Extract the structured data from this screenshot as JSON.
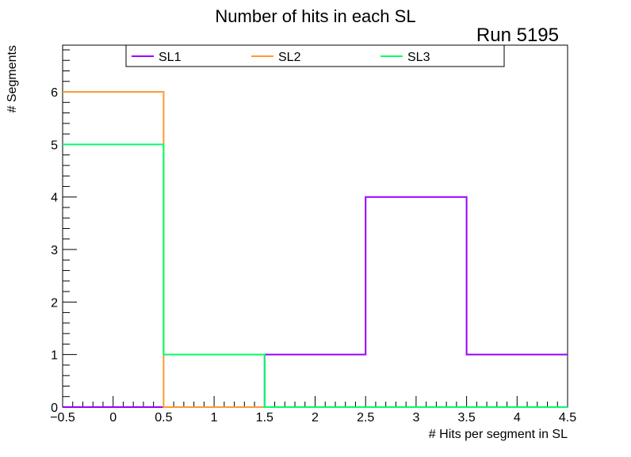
{
  "chart_data": {
    "type": "histogram",
    "title": "Number of hits in each SL",
    "annotation": "Run 5195",
    "xlabel": "# Hits per segment in SL",
    "ylabel": "# Segments",
    "xlim": [
      -0.5,
      4.5
    ],
    "ylim": [
      0,
      6.89
    ],
    "bin_edges": [
      -0.5,
      0.5,
      1.5,
      2.5,
      3.5,
      4.5
    ],
    "x_ticks": [
      "-0.5",
      "0",
      "0.5",
      "1",
      "1.5",
      "2",
      "2.5",
      "3",
      "3.5",
      "4",
      "4.5"
    ],
    "x_tick_values": [
      -0.5,
      0,
      0.5,
      1,
      1.5,
      2,
      2.5,
      3,
      3.5,
      4,
      4.5
    ],
    "y_ticks": [
      "0",
      "1",
      "2",
      "3",
      "4",
      "5",
      "6"
    ],
    "y_tick_values": [
      0,
      1,
      2,
      3,
      4,
      5,
      6
    ],
    "grid": false,
    "legend_position": "top",
    "series": [
      {
        "name": "SL1",
        "color": "#9900ff",
        "values": [
          0,
          0,
          1,
          4,
          1
        ]
      },
      {
        "name": "SL2",
        "color": "#ff9933",
        "values": [
          6,
          0,
          0,
          0,
          0
        ]
      },
      {
        "name": "SL3",
        "color": "#00ff66",
        "values": [
          5,
          1,
          0,
          0,
          0
        ]
      }
    ]
  }
}
